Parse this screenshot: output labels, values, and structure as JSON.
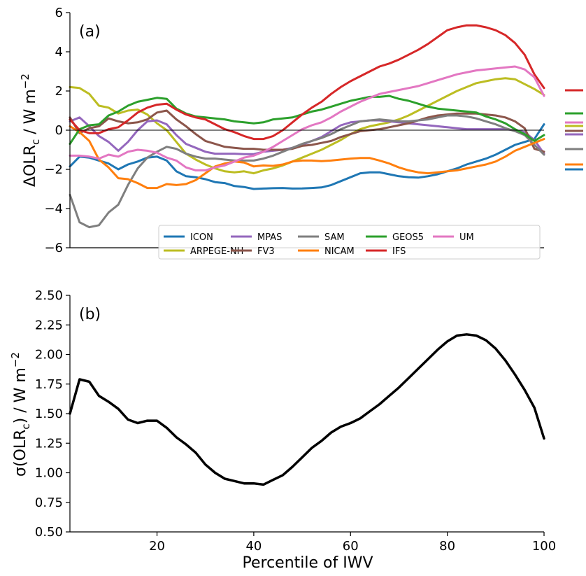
{
  "chart_data": [
    {
      "type": "line",
      "panel_label": "(a)",
      "xlabel": "",
      "ylabel_main": "ΔOLR",
      "ylabel_sub": "c",
      "ylabel_unit": " / W m",
      "ylabel_exp": "−2",
      "xlim": [
        2,
        100
      ],
      "ylim": [
        -6,
        6
      ],
      "yticks": [
        -6,
        -4,
        -2,
        0,
        2,
        4,
        6
      ],
      "ytick_labels": [
        "−6",
        "−4",
        "−2",
        "0",
        "2",
        "4",
        "6"
      ],
      "legend_position": "lower-right",
      "zero_line": true,
      "x": [
        2,
        4,
        6,
        8,
        10,
        12,
        14,
        16,
        18,
        20,
        22,
        24,
        26,
        28,
        30,
        32,
        34,
        36,
        38,
        40,
        42,
        44,
        46,
        48,
        50,
        52,
        54,
        56,
        58,
        60,
        62,
        64,
        66,
        68,
        70,
        72,
        74,
        76,
        78,
        80,
        82,
        84,
        86,
        88,
        90,
        92,
        94,
        96,
        98,
        100
      ],
      "series": [
        {
          "name": "ICON",
          "color": "#1f77b4",
          "values": [
            -1.85,
            -1.35,
            -1.4,
            -1.55,
            -1.7,
            -2.0,
            -1.75,
            -1.6,
            -1.4,
            -1.35,
            -1.55,
            -2.1,
            -2.35,
            -2.4,
            -2.5,
            -2.65,
            -2.7,
            -2.85,
            -2.9,
            -3.0,
            -2.98,
            -2.96,
            -2.95,
            -2.98,
            -2.97,
            -2.95,
            -2.92,
            -2.8,
            -2.6,
            -2.4,
            -2.2,
            -2.15,
            -2.15,
            -2.25,
            -2.35,
            -2.4,
            -2.42,
            -2.35,
            -2.25,
            -2.1,
            -1.95,
            -1.75,
            -1.6,
            -1.45,
            -1.25,
            -1.0,
            -0.75,
            -0.6,
            -0.45,
            0.3
          ]
        },
        {
          "name": "ARPEGE-NH",
          "color": "#bcbd22",
          "values": [
            2.2,
            2.15,
            1.85,
            1.25,
            1.15,
            0.85,
            1.0,
            1.05,
            0.8,
            0.35,
            0.0,
            -0.6,
            -1.2,
            -1.5,
            -1.75,
            -1.95,
            -2.1,
            -2.15,
            -2.1,
            -2.2,
            -2.05,
            -1.95,
            -1.8,
            -1.6,
            -1.4,
            -1.2,
            -1.0,
            -0.75,
            -0.5,
            -0.2,
            0.05,
            0.2,
            0.3,
            0.4,
            0.55,
            0.75,
            1.0,
            1.25,
            1.5,
            1.75,
            2.0,
            2.2,
            2.4,
            2.5,
            2.6,
            2.65,
            2.6,
            2.35,
            2.1,
            1.8
          ]
        },
        {
          "name": "MPAS",
          "color": "#9467bd",
          "values": [
            0.45,
            0.65,
            0.2,
            -0.3,
            -0.6,
            -1.05,
            -0.6,
            0.0,
            0.45,
            0.5,
            0.3,
            -0.25,
            -0.7,
            -0.9,
            -1.1,
            -1.2,
            -1.2,
            -1.2,
            -1.22,
            -1.22,
            -1.1,
            -1.05,
            -1.0,
            -0.9,
            -0.75,
            -0.55,
            -0.35,
            -0.05,
            0.25,
            0.4,
            0.45,
            0.5,
            0.5,
            0.45,
            0.4,
            0.35,
            0.3,
            0.25,
            0.2,
            0.15,
            0.1,
            0.05,
            0.05,
            0.05,
            0.05,
            0.05,
            0.0,
            -0.1,
            -0.5,
            -1.2
          ]
        },
        {
          "name": "FV3",
          "color": "#8c564b",
          "values": [
            0.65,
            -0.15,
            0.1,
            0.2,
            0.6,
            0.45,
            0.35,
            0.4,
            0.55,
            0.9,
            1.0,
            0.55,
            0.2,
            -0.2,
            -0.55,
            -0.7,
            -0.85,
            -0.9,
            -0.95,
            -0.95,
            -1.0,
            -1.0,
            -1.0,
            -0.95,
            -0.8,
            -0.75,
            -0.65,
            -0.55,
            -0.35,
            -0.2,
            -0.05,
            0.0,
            0.05,
            0.15,
            0.25,
            0.35,
            0.5,
            0.65,
            0.75,
            0.8,
            0.85,
            0.85,
            0.85,
            0.8,
            0.75,
            0.65,
            0.45,
            0.1,
            -0.95,
            -1.1
          ]
        },
        {
          "name": "SAM",
          "color": "#7f7f7f",
          "values": [
            -3.3,
            -4.7,
            -4.95,
            -4.85,
            -4.2,
            -3.8,
            -2.8,
            -1.95,
            -1.4,
            -1.1,
            -0.85,
            -0.95,
            -1.2,
            -1.35,
            -1.45,
            -1.45,
            -1.5,
            -1.55,
            -1.55,
            -1.55,
            -1.45,
            -1.3,
            -1.1,
            -0.9,
            -0.7,
            -0.55,
            -0.4,
            -0.2,
            0.05,
            0.25,
            0.45,
            0.5,
            0.55,
            0.5,
            0.45,
            0.45,
            0.5,
            0.55,
            0.65,
            0.75,
            0.75,
            0.7,
            0.6,
            0.45,
            0.3,
            0.1,
            -0.05,
            -0.25,
            -0.75,
            -1.25
          ]
        },
        {
          "name": "NICAM",
          "color": "#ff7f0e",
          "values": [
            0.2,
            -0.1,
            -0.55,
            -1.5,
            -1.9,
            -2.45,
            -2.5,
            -2.7,
            -2.95,
            -2.95,
            -2.75,
            -2.8,
            -2.75,
            -2.55,
            -2.2,
            -1.85,
            -1.7,
            -1.6,
            -1.65,
            -1.85,
            -1.8,
            -1.82,
            -1.75,
            -1.6,
            -1.55,
            -1.55,
            -1.58,
            -1.55,
            -1.5,
            -1.45,
            -1.42,
            -1.42,
            -1.55,
            -1.7,
            -1.9,
            -2.05,
            -2.15,
            -2.2,
            -2.15,
            -2.1,
            -2.05,
            -1.95,
            -1.85,
            -1.75,
            -1.6,
            -1.35,
            -1.05,
            -0.85,
            -0.65,
            -0.45
          ]
        },
        {
          "name": "GEOS5",
          "color": "#2ca02c",
          "values": [
            -0.7,
            0.05,
            0.25,
            0.3,
            0.75,
            0.95,
            1.25,
            1.45,
            1.55,
            1.65,
            1.6,
            1.1,
            0.85,
            0.7,
            0.65,
            0.6,
            0.55,
            0.45,
            0.4,
            0.35,
            0.4,
            0.55,
            0.6,
            0.65,
            0.8,
            0.95,
            1.05,
            1.2,
            1.35,
            1.5,
            1.6,
            1.7,
            1.7,
            1.75,
            1.6,
            1.5,
            1.35,
            1.2,
            1.1,
            1.05,
            1.0,
            0.95,
            0.9,
            0.7,
            0.55,
            0.35,
            0.05,
            -0.2,
            -0.55,
            -0.25
          ]
        },
        {
          "name": "IFS",
          "color": "#d62728",
          "values": [
            0.55,
            0.0,
            -0.15,
            -0.15,
            0.05,
            0.15,
            0.5,
            0.9,
            1.15,
            1.3,
            1.35,
            1.05,
            0.8,
            0.65,
            0.55,
            0.3,
            0.05,
            -0.1,
            -0.3,
            -0.45,
            -0.45,
            -0.3,
            0.0,
            0.4,
            0.8,
            1.15,
            1.45,
            1.85,
            2.2,
            2.5,
            2.75,
            3.0,
            3.25,
            3.4,
            3.6,
            3.85,
            4.1,
            4.4,
            4.75,
            5.1,
            5.25,
            5.35,
            5.35,
            5.25,
            5.1,
            4.85,
            4.45,
            3.85,
            2.85,
            2.15
          ]
        },
        {
          "name": "UM",
          "color": "#e377c2",
          "values": [
            -1.3,
            -1.3,
            -1.35,
            -1.45,
            -1.25,
            -1.35,
            -1.1,
            -1.0,
            -1.05,
            -1.15,
            -1.4,
            -1.55,
            -1.9,
            -2.05,
            -2.05,
            -1.9,
            -1.8,
            -1.6,
            -1.4,
            -1.3,
            -1.1,
            -0.85,
            -0.55,
            -0.25,
            0.05,
            0.25,
            0.4,
            0.65,
            0.95,
            1.2,
            1.45,
            1.65,
            1.85,
            1.95,
            2.05,
            2.15,
            2.25,
            2.4,
            2.55,
            2.7,
            2.85,
            2.95,
            3.05,
            3.1,
            3.15,
            3.2,
            3.25,
            3.1,
            2.7,
            1.75
          ]
        }
      ]
    },
    {
      "type": "line",
      "panel_label": "(b)",
      "xlabel": "Percentile of IWV",
      "ylabel_main": "σ(OLR",
      "ylabel_sub": "c",
      "ylabel_unit": ") / W m",
      "ylabel_exp": "−2",
      "xlim": [
        2,
        100
      ],
      "ylim": [
        0.5,
        2.5
      ],
      "yticks": [
        0.5,
        0.75,
        1.0,
        1.25,
        1.5,
        1.75,
        2.0,
        2.25,
        2.5
      ],
      "ytick_labels": [
        "0.50",
        "0.75",
        "1.00",
        "1.25",
        "1.50",
        "1.75",
        "2.00",
        "2.25",
        "2.50"
      ],
      "xticks": [
        20,
        40,
        60,
        80,
        100
      ],
      "xtick_labels": [
        "20",
        "40",
        "60",
        "80",
        "100"
      ],
      "x": [
        2,
        4,
        6,
        8,
        10,
        12,
        14,
        16,
        18,
        20,
        22,
        24,
        26,
        28,
        30,
        32,
        34,
        36,
        38,
        40,
        42,
        44,
        46,
        48,
        50,
        52,
        54,
        56,
        58,
        60,
        62,
        64,
        66,
        68,
        70,
        72,
        74,
        76,
        78,
        80,
        82,
        84,
        86,
        88,
        90,
        92,
        94,
        96,
        98,
        100
      ],
      "series": [
        {
          "color": "#000000",
          "values": [
            1.5,
            1.79,
            1.77,
            1.65,
            1.6,
            1.54,
            1.45,
            1.42,
            1.44,
            1.44,
            1.38,
            1.3,
            1.24,
            1.17,
            1.07,
            1.0,
            0.95,
            0.93,
            0.91,
            0.91,
            0.9,
            0.94,
            0.98,
            1.05,
            1.13,
            1.21,
            1.27,
            1.34,
            1.39,
            1.42,
            1.46,
            1.52,
            1.58,
            1.65,
            1.72,
            1.8,
            1.88,
            1.96,
            2.04,
            2.11,
            2.16,
            2.17,
            2.16,
            2.12,
            2.05,
            1.95,
            1.83,
            1.7,
            1.55,
            1.29
          ]
        }
      ]
    }
  ]
}
